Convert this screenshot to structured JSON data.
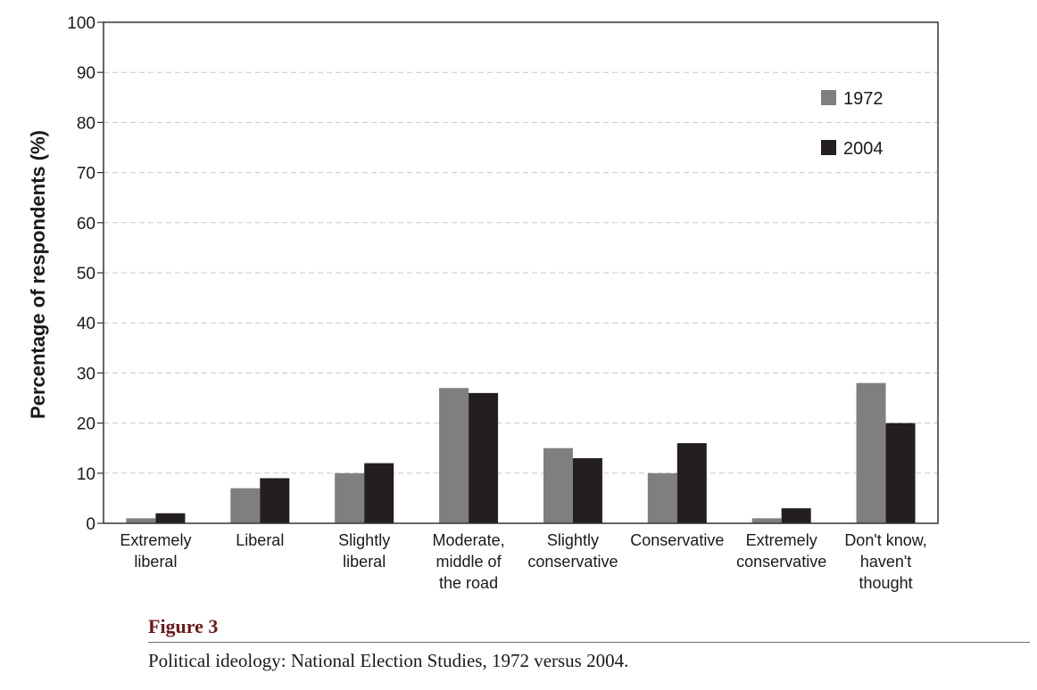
{
  "chart_data": {
    "type": "bar",
    "ylabel": "Percentage of respondents (%)",
    "xlabel": "",
    "ylim": [
      0,
      100
    ],
    "yticks": [
      0,
      10,
      20,
      30,
      40,
      50,
      60,
      70,
      80,
      90,
      100
    ],
    "grid": true,
    "legend_position": "top-right",
    "categories": [
      [
        "Extremely",
        "liberal"
      ],
      [
        "Liberal"
      ],
      [
        "Slightly",
        "liberal"
      ],
      [
        "Moderate,",
        "middle of",
        "the road"
      ],
      [
        "Slightly",
        "conservative"
      ],
      [
        "Conservative"
      ],
      [
        "Extremely",
        "conservative"
      ],
      [
        "Don't know,",
        "haven't",
        "thought"
      ]
    ],
    "series": [
      {
        "name": "1972",
        "color": "#7f7f7f",
        "values": [
          1,
          7,
          10,
          27,
          15,
          10,
          1,
          28
        ]
      },
      {
        "name": "2004",
        "color": "#231f20",
        "values": [
          2,
          9,
          12,
          26,
          13,
          16,
          3,
          20
        ]
      }
    ]
  },
  "figure": {
    "label": "Figure 3",
    "caption": "Political ideology: National Election Studies, 1972 versus 2004."
  }
}
